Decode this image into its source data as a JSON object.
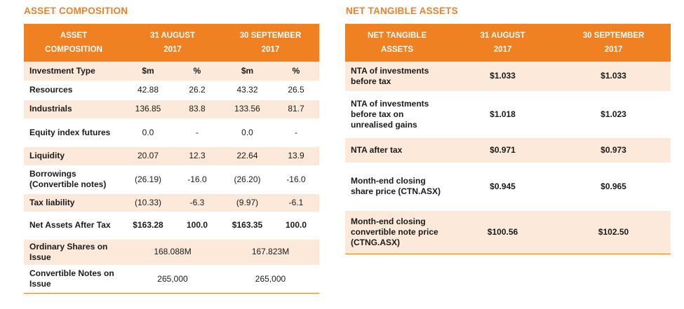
{
  "asset_composition": {
    "title": "ASSET COMPOSITION",
    "header": {
      "col1_line1": "ASSET",
      "col1_line2": "COMPOSITION",
      "col2_line1": "31 AUGUST",
      "col2_line2": "2017",
      "col3_line1": "30 SEPTEMBER",
      "col3_line2": "2017"
    },
    "subheader": {
      "label": "Investment Type",
      "aug_m": "$m",
      "aug_pct": "%",
      "sep_m": "$m",
      "sep_pct": "%"
    },
    "rows": [
      {
        "label": "Resources",
        "aug_m": "42.88",
        "aug_pct": "26.2",
        "sep_m": "43.32",
        "sep_pct": "26.5"
      },
      {
        "label": "Industrials",
        "aug_m": "136.85",
        "aug_pct": "83.8",
        "sep_m": "133.56",
        "sep_pct": "81.7"
      },
      {
        "label": "Equity index futures",
        "aug_m": "0.0",
        "aug_pct": "-",
        "sep_m": "0.0",
        "sep_pct": "-"
      },
      {
        "label": "Liquidity",
        "aug_m": "20.07",
        "aug_pct": "12.3",
        "sep_m": "22.64",
        "sep_pct": "13.9"
      },
      {
        "label": "Borrowings (Convertible notes)",
        "aug_m": "(26.19)",
        "aug_pct": "-16.0",
        "sep_m": "(26.20)",
        "sep_pct": "-16.0"
      },
      {
        "label": "Tax liability",
        "aug_m": "(10.33)",
        "aug_pct": "-6.3",
        "sep_m": "(9.97)",
        "sep_pct": "-6.1"
      },
      {
        "label": "Net Assets After Tax",
        "aug_m": "$163.28",
        "aug_pct": "100.0",
        "sep_m": "$163.35",
        "sep_pct": "100.0"
      }
    ],
    "shares_row": {
      "label": "Ordinary Shares on Issue",
      "aug": "168.088M",
      "sep": "167.823M"
    },
    "notes_row": {
      "label": "Convertible Notes on Issue",
      "aug": "265,000",
      "sep": "265,000"
    }
  },
  "net_tangible_assets": {
    "title": "NET TANGIBLE ASSETS",
    "header": {
      "col1_line1": "NET TANGIBLE",
      "col1_line2": "ASSETS",
      "col2_line1": "31 AUGUST",
      "col2_line2": "2017",
      "col3_line1": "30 SEPTEMBER",
      "col3_line2": "2017"
    },
    "rows": [
      {
        "label": "NTA of investments before tax",
        "aug": "$1.033",
        "sep": "$1.033"
      },
      {
        "label": "NTA of investments before tax on unrealised gains",
        "aug": "$1.018",
        "sep": "$1.023"
      },
      {
        "label": "NTA after tax",
        "aug": "$0.971",
        "sep": "$0.973"
      },
      {
        "label": "Month-end closing share price (CTN.ASX)",
        "aug": "$0.945",
        "sep": "$0.965"
      },
      {
        "label": "Month-end closing convertible note price (CTNG.ASX)",
        "aug": "$100.56",
        "sep": "$102.50"
      }
    ]
  }
}
